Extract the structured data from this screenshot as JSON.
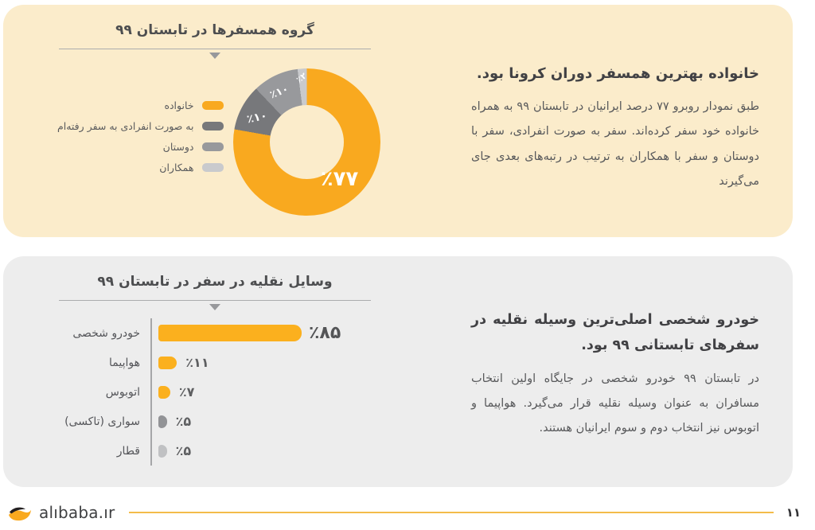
{
  "colors": {
    "cream_panel": "#FBECCB",
    "gray_panel": "#EDEDED",
    "brand_yellow": "#F9A91F",
    "footer_line_yellow": "#F3BC4A",
    "title_text": "#4D4E50",
    "body_text": "#58595B"
  },
  "top_panel": {
    "heading": "خانواده بهترین همسفر دوران کرونا بود.",
    "body": "طبق نمودار روبرو ۷۷ درصد ایرانیان در تابستان ۹۹ به همراه خانواده خود سفر کرده‌اند. سفر به صورت انفرادی، سفر با دوستان و سفر با همکاران به ترتیب در رتبه‌های بعدی جای می‌گیرند"
  },
  "bottom_panel": {
    "heading": "خودرو شخصی اصلی‌ترین وسیله نقلیه در سفرهای تابستانی ۹۹ بود.",
    "body": "در تابستان ۹۹ خودرو شخصی در جایگاه اولین انتخاب مسافران به عنوان وسیله نقلیه قرار می‌گیرد. هواپیما و اتوبوس نیز انتخاب دوم و سوم ایرانیان هستند."
  },
  "footer": {
    "brand": "alıbaba.ır",
    "logo_icon": "alibaba-bird-icon",
    "page_number": "۱۱"
  },
  "chart_data": [
    {
      "type": "pie",
      "donut": true,
      "hole_ratio": 0.5,
      "title": "گروه همسفرها در تابستان ۹۹",
      "labels": [
        "خانواده",
        "به صورت انفرادی به سفر رفته‌ام",
        "دوستان",
        "همکاران"
      ],
      "values": [
        77,
        10,
        10,
        2
      ],
      "value_labels": [
        "٪۷۷",
        "٪۱۰",
        "٪۱۰",
        "٪۲"
      ],
      "colors": [
        "#F9A91F",
        "#77787B",
        "#98999C",
        "#C9CACD"
      ],
      "legend_position": "left",
      "start_angle_deg": 0,
      "direction": "clockwise"
    },
    {
      "type": "bar",
      "orientation": "horizontal",
      "title": "وسایل نقلیه در سفر در تابستان ۹۹",
      "categories": [
        "خودرو شخصی",
        "هواپیما",
        "اتوبوس",
        "سواری (تاکسی)",
        "قطار"
      ],
      "values": [
        85,
        11,
        7,
        5,
        5
      ],
      "value_labels": [
        "٪۸۵",
        "٪۱۱",
        "٪۷",
        "٪۵",
        "٪۵"
      ],
      "colors": [
        "#FBB01E",
        "#FBB01E",
        "#FBB01E",
        "#929396",
        "#C0C1C3"
      ],
      "xlim": [
        0,
        100
      ],
      "grid": false
    }
  ]
}
